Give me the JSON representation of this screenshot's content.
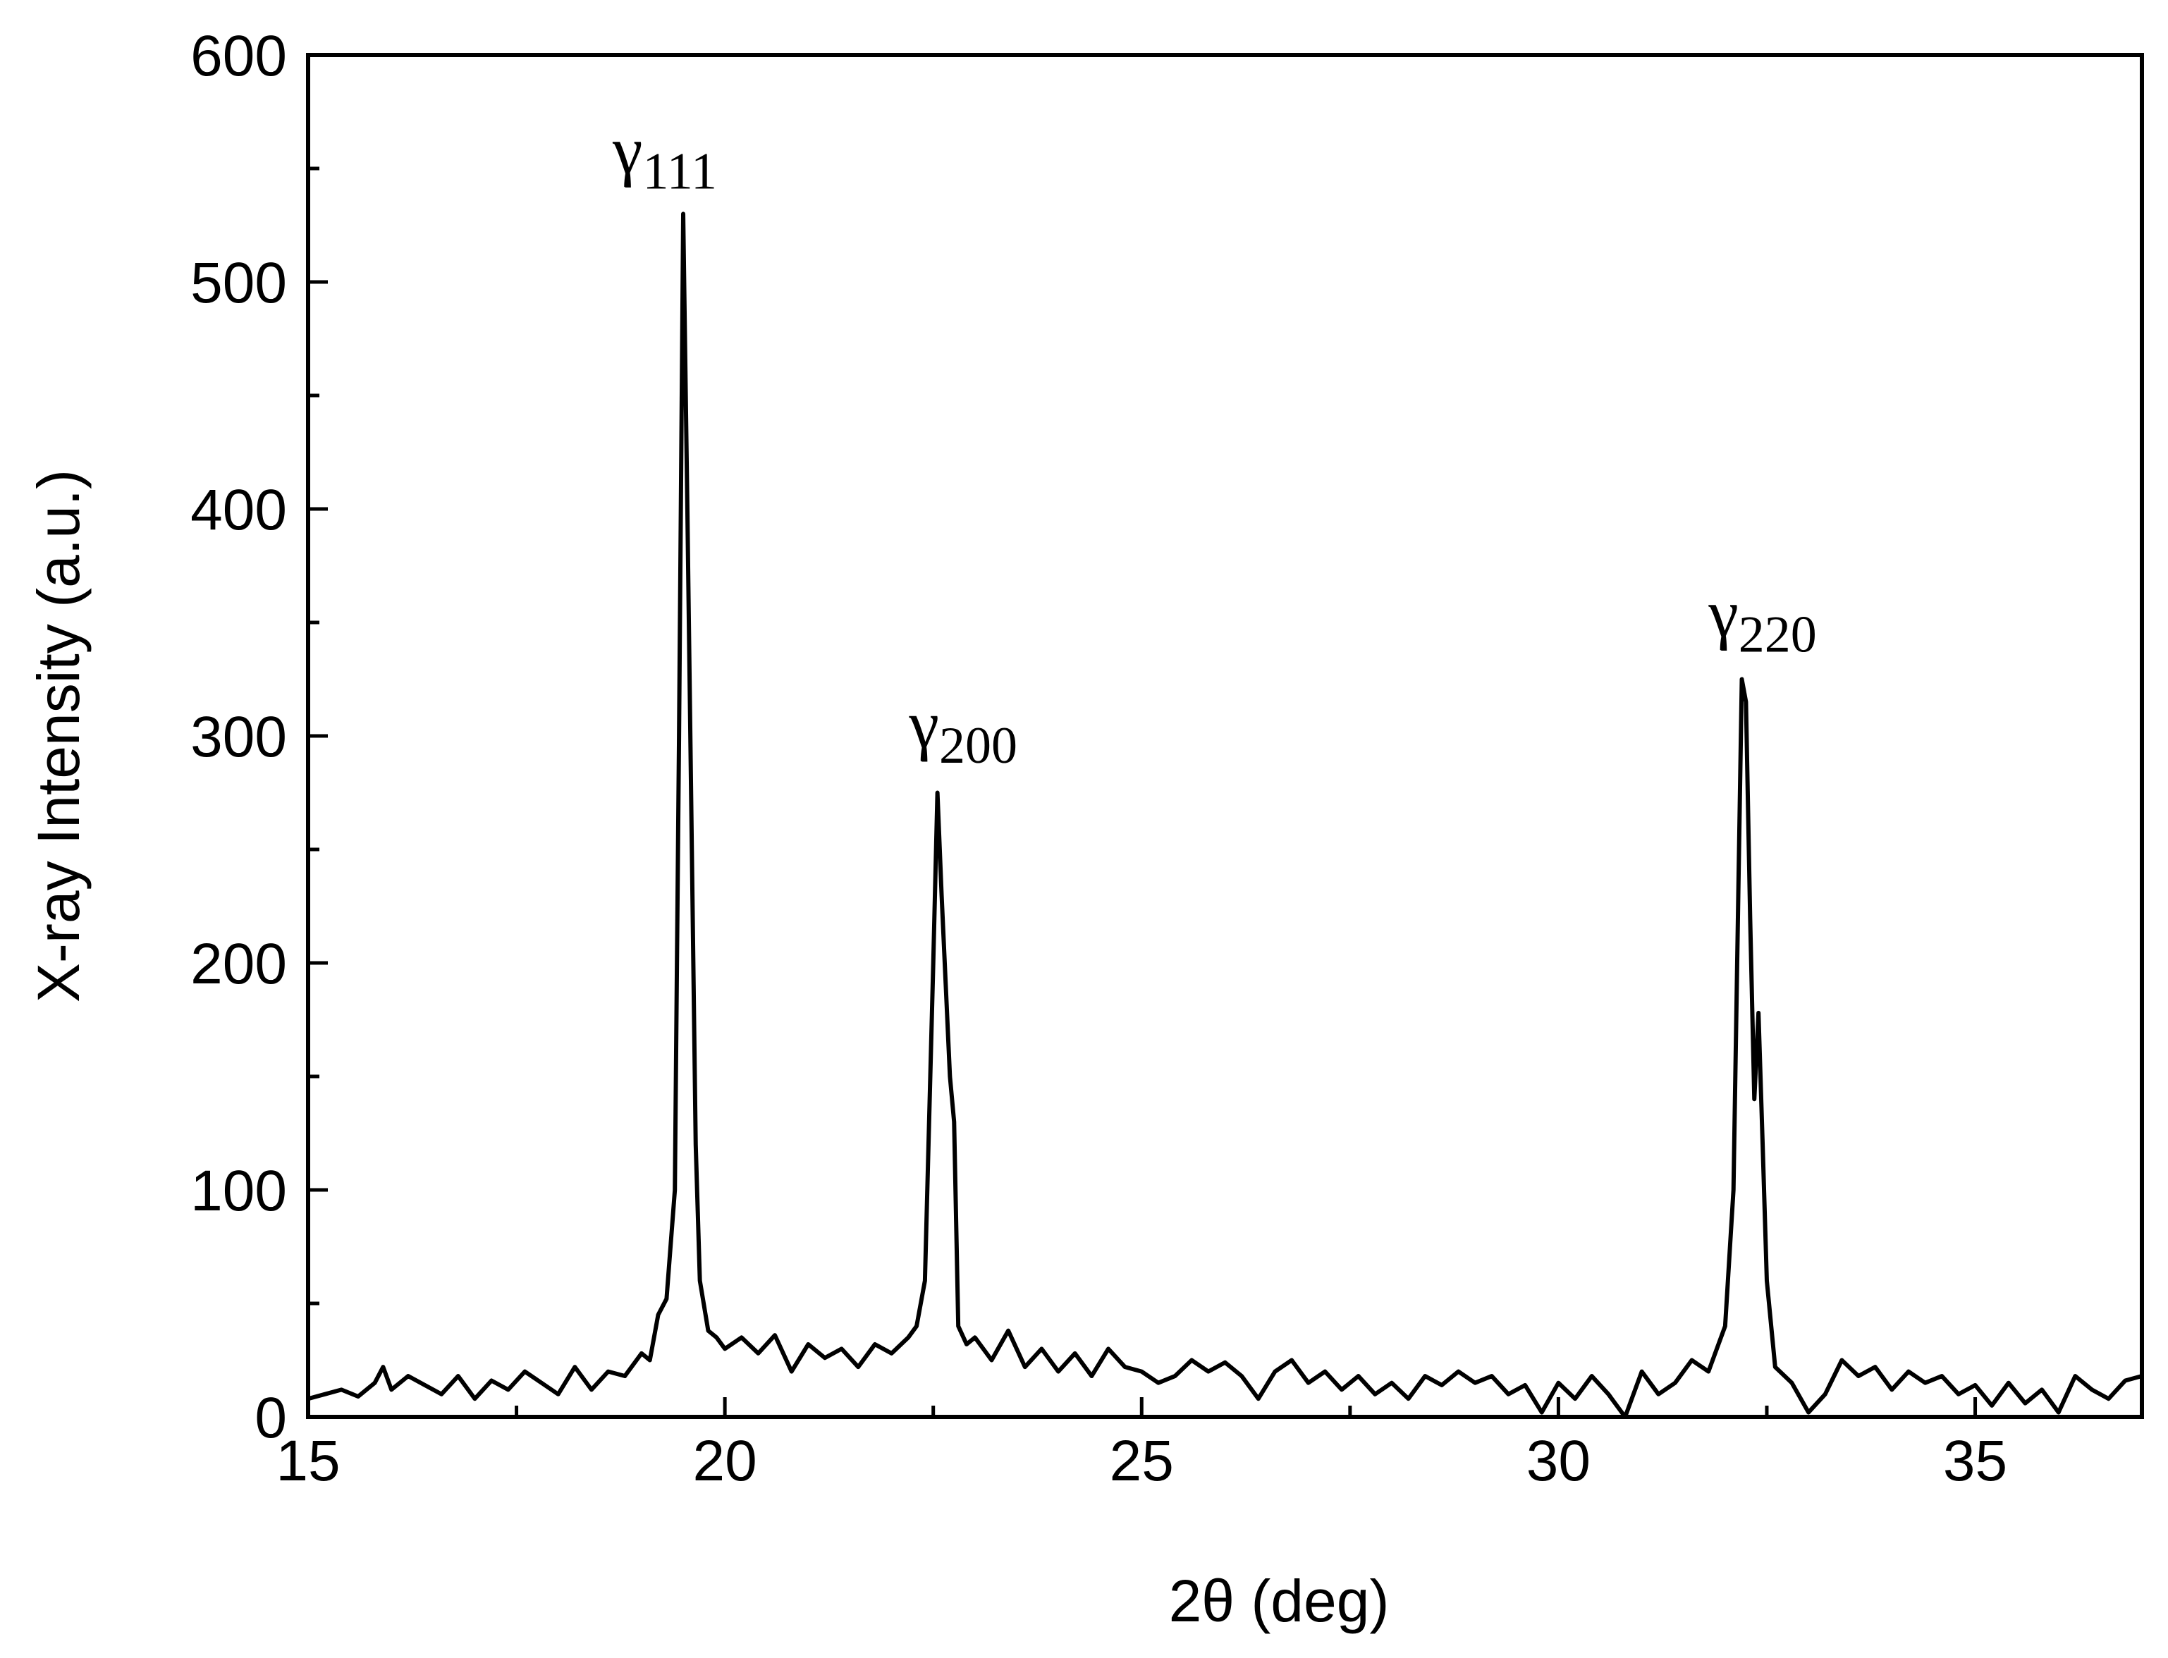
{
  "chart_data": {
    "type": "line",
    "xlabel": "2θ (deg)",
    "ylabel": "X-ray Intensity (a.u.)",
    "xlim": [
      15,
      37
    ],
    "ylim": [
      0,
      600
    ],
    "xticks": [
      15,
      20,
      25,
      30,
      35
    ],
    "yticks": [
      0,
      100,
      200,
      300,
      400,
      500,
      600
    ],
    "xticks_minor": [
      17.5,
      22.5,
      27.5,
      32.5
    ],
    "yticks_minor": [
      50,
      150,
      250,
      350,
      450,
      550
    ],
    "annotations": [
      {
        "text": "γ",
        "sub": "111",
        "x": 19.28,
        "y": 548
      },
      {
        "text": "γ",
        "sub": "200",
        "x": 22.86,
        "y": 295
      },
      {
        "text": "γ",
        "sub": "220",
        "x": 32.45,
        "y": 344
      }
    ],
    "series": [
      {
        "color": "#000000",
        "x": [
          15.0,
          15.2,
          15.4,
          15.6,
          15.8,
          15.9,
          16.0,
          16.2,
          16.4,
          16.6,
          16.8,
          17.0,
          17.2,
          17.4,
          17.6,
          17.8,
          18.0,
          18.2,
          18.4,
          18.6,
          18.8,
          19.0,
          19.1,
          19.2,
          19.3,
          19.4,
          19.45,
          19.5,
          19.55,
          19.6,
          19.65,
          19.7,
          19.8,
          19.9,
          20.0,
          20.2,
          20.4,
          20.6,
          20.8,
          21.0,
          21.2,
          21.4,
          21.6,
          21.8,
          22.0,
          22.2,
          22.3,
          22.4,
          22.5,
          22.55,
          22.6,
          22.7,
          22.75,
          22.8,
          22.9,
          23.0,
          23.2,
          23.4,
          23.6,
          23.8,
          24.0,
          24.2,
          24.4,
          24.6,
          24.8,
          25.0,
          25.2,
          25.4,
          25.6,
          25.8,
          26.0,
          26.2,
          26.4,
          26.6,
          26.8,
          27.0,
          27.2,
          27.4,
          27.6,
          27.8,
          28.0,
          28.2,
          28.4,
          28.6,
          28.8,
          29.0,
          29.2,
          29.4,
          29.6,
          29.8,
          30.0,
          30.2,
          30.4,
          30.6,
          30.8,
          31.0,
          31.2,
          31.4,
          31.6,
          31.8,
          32.0,
          32.1,
          32.2,
          32.25,
          32.3,
          32.35,
          32.4,
          32.45,
          32.5,
          32.6,
          32.8,
          33.0,
          33.2,
          33.4,
          33.6,
          33.8,
          34.0,
          34.2,
          34.4,
          34.6,
          34.8,
          35.0,
          35.2,
          35.4,
          35.6,
          35.8,
          36.0,
          36.2,
          36.4,
          36.6,
          36.8,
          37.0
        ],
        "values": [
          8,
          10,
          12,
          9,
          15,
          22,
          12,
          18,
          14,
          10,
          18,
          8,
          16,
          12,
          20,
          15,
          10,
          22,
          12,
          20,
          18,
          28,
          25,
          45,
          52,
          100,
          300,
          530,
          400,
          260,
          120,
          60,
          38,
          35,
          30,
          35,
          28,
          36,
          20,
          32,
          26,
          30,
          22,
          32,
          28,
          35,
          40,
          60,
          200,
          275,
          230,
          150,
          130,
          40,
          32,
          35,
          25,
          38,
          22,
          30,
          20,
          28,
          18,
          30,
          22,
          20,
          15,
          18,
          25,
          20,
          24,
          18,
          8,
          20,
          25,
          15,
          20,
          12,
          18,
          10,
          15,
          8,
          18,
          14,
          20,
          15,
          18,
          10,
          14,
          2,
          15,
          8,
          18,
          10,
          0,
          20,
          10,
          15,
          25,
          20,
          40,
          100,
          325,
          315,
          220,
          140,
          178,
          120,
          60,
          22,
          15,
          2,
          10,
          25,
          18,
          22,
          12,
          20,
          15,
          18,
          10,
          14,
          5,
          15,
          6,
          12,
          2,
          18,
          12,
          8,
          16,
          18
        ]
      }
    ]
  }
}
